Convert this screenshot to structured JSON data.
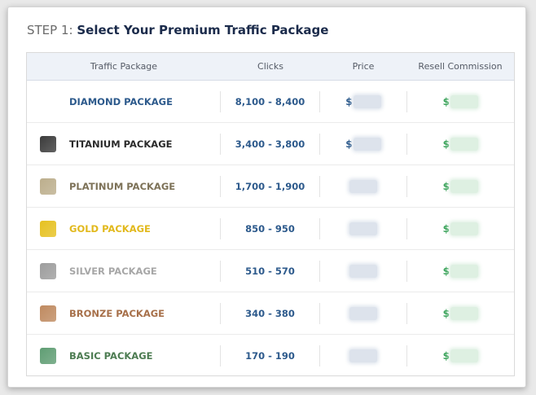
{
  "heading": {
    "step": "STEP 1:",
    "title": "Select Your Premium Traffic Package"
  },
  "table": {
    "columns": [
      "Traffic Package",
      "Clicks",
      "Price",
      "Resell Commission"
    ],
    "rows": [
      {
        "package": "DIAMOND PACKAGE",
        "clicks": "8,100 - 8,400",
        "price_prefix": "$",
        "resell_prefix": "$",
        "name_color": "#2d5a8c",
        "swatch_color": "",
        "icon": "none"
      },
      {
        "package": "TITANIUM PACKAGE",
        "clicks": "3,400 - 3,800",
        "price_prefix": "$",
        "resell_prefix": "$",
        "name_color": "#2b2b2b",
        "swatch_color": "#3b3b3b",
        "icon": "titanium-swatch-icon"
      },
      {
        "package": "PLATINUM PACKAGE",
        "clicks": "1,700 - 1,900",
        "price_prefix": "",
        "resell_prefix": "$",
        "name_color": "#7d7258",
        "swatch_color": "#bcae8c",
        "icon": "platinum-swatch-icon"
      },
      {
        "package": "GOLD PACKAGE",
        "clicks": "850 - 950",
        "price_prefix": "",
        "resell_prefix": "$",
        "name_color": "#e2b91d",
        "swatch_color": "#e6c120",
        "icon": "gold-swatch-icon"
      },
      {
        "package": "SILVER PACKAGE",
        "clicks": "510 - 570",
        "price_prefix": "",
        "resell_prefix": "$",
        "name_color": "#a7a7a7",
        "swatch_color": "#9d9d9d",
        "icon": "silver-swatch-icon"
      },
      {
        "package": "BRONZE PACKAGE",
        "clicks": "340 - 380",
        "price_prefix": "",
        "resell_prefix": "$",
        "name_color": "#a7704a",
        "swatch_color": "#bf8a60",
        "icon": "bronze-swatch-icon"
      },
      {
        "package": "BASIC PACKAGE",
        "clicks": "170 - 190",
        "price_prefix": "",
        "resell_prefix": "$",
        "name_color": "#4d7c52",
        "swatch_color": "#5f9d73",
        "icon": "basic-swatch-icon"
      }
    ]
  }
}
